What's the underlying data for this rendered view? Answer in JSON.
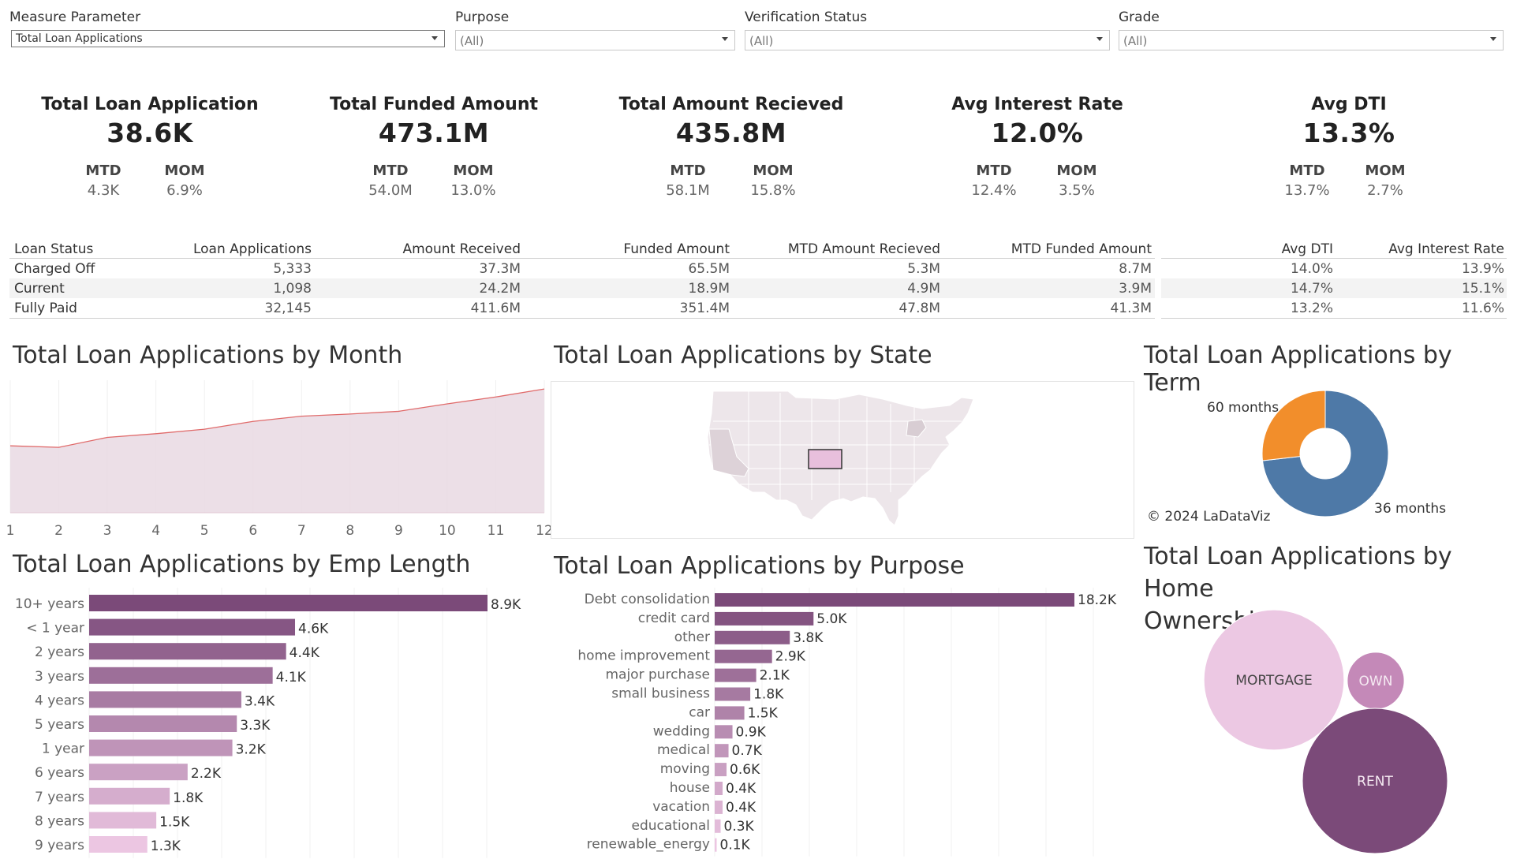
{
  "filters": {
    "measure": {
      "label": "Measure Parameter",
      "value": "Total Loan Applications"
    },
    "purpose": {
      "label": "Purpose",
      "value": "(All)"
    },
    "verification": {
      "label": "Verification Status",
      "value": "(All)"
    },
    "grade": {
      "label": "Grade",
      "value": "(All)"
    }
  },
  "kpis": [
    {
      "title": "Total Loan Application",
      "value": "38.6K",
      "mtd_label": "MTD",
      "mtd": "4.3K",
      "mom_label": "MOM",
      "mom": "6.9%"
    },
    {
      "title": "Total Funded Amount",
      "value": "473.1M",
      "mtd_label": "MTD",
      "mtd": "54.0M",
      "mom_label": "MOM",
      "mom": "13.0%"
    },
    {
      "title": "Total Amount Recieved",
      "value": "435.8M",
      "mtd_label": "MTD",
      "mtd": "58.1M",
      "mom_label": "MOM",
      "mom": "15.8%"
    },
    {
      "title": "Avg Interest Rate",
      "value": "12.0%",
      "mtd_label": "MTD",
      "mtd": "12.4%",
      "mom_label": "MOM",
      "mom": "3.5%"
    },
    {
      "title": "Avg DTI",
      "value": "13.3%",
      "mtd_label": "MTD",
      "mtd": "13.7%",
      "mom_label": "MOM",
      "mom": "2.7%"
    }
  ],
  "status_table": {
    "headers": [
      "Loan Status",
      "Loan Applications",
      "Amount Received",
      "Funded Amount",
      "MTD Amount Recieved",
      "MTD Funded Amount",
      "Avg DTI",
      "Avg Interest Rate"
    ],
    "rows": [
      [
        "Charged Off",
        "5,333",
        "37.3M",
        "65.5M",
        "5.3M",
        "8.7M",
        "14.0%",
        "13.9%"
      ],
      [
        "Current",
        "1,098",
        "24.2M",
        "18.9M",
        "4.9M",
        "3.9M",
        "14.7%",
        "15.1%"
      ],
      [
        "Fully Paid",
        "32,145",
        "411.6M",
        "351.4M",
        "47.8M",
        "41.3M",
        "13.2%",
        "11.6%"
      ]
    ]
  },
  "titles": {
    "month": "Total Loan Applications by Month",
    "state": "Total Loan Applications by State",
    "term": "Total Loan Applications by Term",
    "emp": "Total Loan Applications by Emp Length",
    "purpose": "Total Loan Applications by Purpose",
    "home_line1": "Total Loan Applications by Home",
    "home_line2": "Ownership"
  },
  "copyright": "© 2024 LaDataViz",
  "colors": {
    "area_fill": "#e9d9e3",
    "area_line": "#e06a6a",
    "bar_dark": "#7b4a79",
    "bar_light": "#ecc6e2",
    "term_36": "#4e79a7",
    "term_60": "#f28e2b",
    "map_highlight": "#e8bfdc",
    "map_base": "#ede6ea"
  },
  "chart_data": [
    {
      "type": "area",
      "x": [
        1,
        2,
        3,
        4,
        5,
        6,
        7,
        8,
        9,
        10,
        11,
        12
      ],
      "values": [
        2332,
        2279,
        2627,
        2755,
        2911,
        3184,
        3366,
        3441,
        3536,
        3796,
        4035,
        4314
      ],
      "ylim": [
        0,
        4400
      ]
    },
    {
      "type": "pie",
      "categories": [
        "36 months",
        "60 months"
      ],
      "values": [
        28237,
        10339
      ]
    },
    {
      "type": "bar",
      "orientation": "horizontal",
      "categories": [
        "10+ years",
        "< 1 year",
        "2 years",
        "3 years",
        "4 years",
        "5 years",
        "1 year",
        "6 years",
        "7 years",
        "8 years",
        "9 years"
      ],
      "values": [
        8.9,
        4.6,
        4.4,
        4.1,
        3.4,
        3.3,
        3.2,
        2.2,
        1.8,
        1.5,
        1.3
      ],
      "labels": [
        "8.9K",
        "4.6K",
        "4.4K",
        "4.1K",
        "3.4K",
        "3.3K",
        "3.2K",
        "2.2K",
        "1.8K",
        "1.5K",
        "1.3K"
      ]
    },
    {
      "type": "bar",
      "orientation": "horizontal",
      "categories": [
        "Debt consolidation",
        "credit card",
        "other",
        "home improvement",
        "major purchase",
        "small business",
        "car",
        "wedding",
        "medical",
        "moving",
        "house",
        "vacation",
        "educational",
        "renewable_energy"
      ],
      "values": [
        18.2,
        5.0,
        3.8,
        2.9,
        2.1,
        1.8,
        1.5,
        0.9,
        0.7,
        0.6,
        0.4,
        0.4,
        0.3,
        0.1
      ],
      "labels": [
        "18.2K",
        "5.0K",
        "3.8K",
        "2.9K",
        "2.1K",
        "1.8K",
        "1.5K",
        "0.9K",
        "0.7K",
        "0.6K",
        "0.4K",
        "0.4K",
        "0.3K",
        "0.1K"
      ]
    },
    {
      "type": "bubble",
      "categories": [
        "MORTGAGE",
        "OWN",
        "RENT"
      ],
      "values": [
        17198,
        2838,
        18439
      ]
    }
  ]
}
